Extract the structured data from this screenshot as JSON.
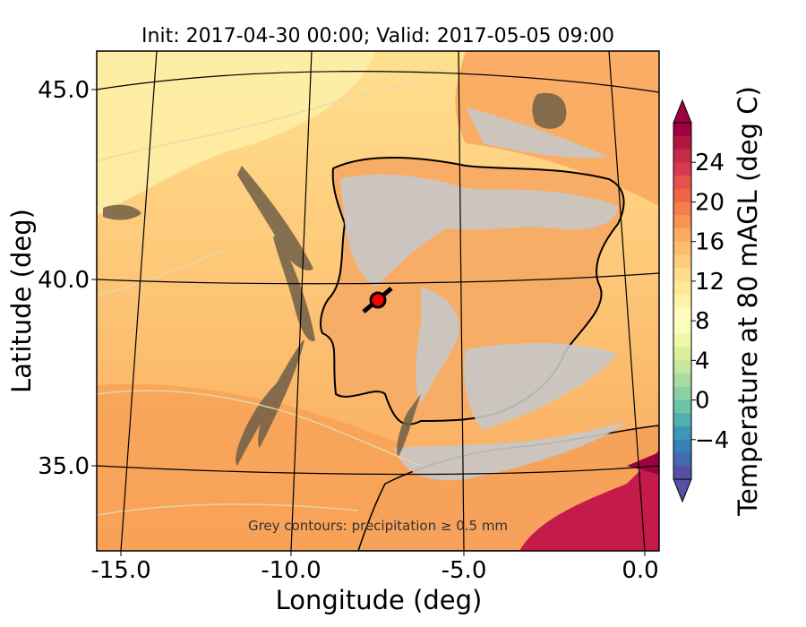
{
  "title": "Init: 2017-04-30 00:00; Valid: 2017-05-05 09:00",
  "xlabel": "Longitude (deg)",
  "ylabel": "Latitude (deg)",
  "colorbar_label": "Temperature at 80 mAGL (deg C)",
  "annotation": "Grey contours: precipitation ≥ 0.5 mm",
  "x_ticks": [
    "-15.0",
    "-10.0",
    "-5.0",
    "0.0"
  ],
  "y_ticks": [
    "45.0",
    "40.0",
    "35.0"
  ],
  "colorbar_ticks": [
    "24",
    "20",
    "16",
    "12",
    "8",
    "4",
    "0",
    "−4"
  ],
  "colorbar_colors_top_to_bottom": [
    "#9e0142",
    "#b2163f",
    "#c62a47",
    "#d8394e",
    "#e4524b",
    "#ee6545",
    "#f47e4c",
    "#f89454",
    "#fbab5f",
    "#fdbd6e",
    "#fdcd7d",
    "#fedc8c",
    "#fee995",
    "#fff3a8",
    "#fffbbe",
    "#fbfdbd",
    "#eef8a8",
    "#dcf09b",
    "#c6e89e",
    "#aadca4",
    "#8cd1a4",
    "#6cc3a5",
    "#52afaf",
    "#3f96b6",
    "#3780b8",
    "#426aaf",
    "#5451a2"
  ],
  "colors": {
    "ocean_base": "#fdd08a",
    "land_base": "#fbb269",
    "precip_grey": "#c8c8c8",
    "terrain_brown": "#6f5f47",
    "hot_patch": "#c51b4b",
    "marker_fill": "#ff0000"
  },
  "map": {
    "lon_range": [
      -16,
      0.3
    ],
    "lat_range": [
      32.8,
      46.2
    ],
    "projection_note": "curved graticule (Lambert-like)"
  },
  "chart_data": {
    "type": "heatmap",
    "title": "Init: 2017-04-30 00:00; Valid: 2017-05-05 09:00",
    "xlabel": "Longitude (deg)",
    "ylabel": "Latitude (deg)",
    "xlim": [
      -16,
      0.3
    ],
    "ylim": [
      32.8,
      46.2
    ],
    "colorbar": {
      "label": "Temperature at 80 mAGL (deg C)",
      "range": [
        -8,
        28
      ],
      "ticks": [
        -4,
        0,
        4,
        8,
        12,
        16,
        20,
        24
      ]
    },
    "marker": {
      "lon": -7.6,
      "lat": 39.3
    },
    "grid": true
  }
}
